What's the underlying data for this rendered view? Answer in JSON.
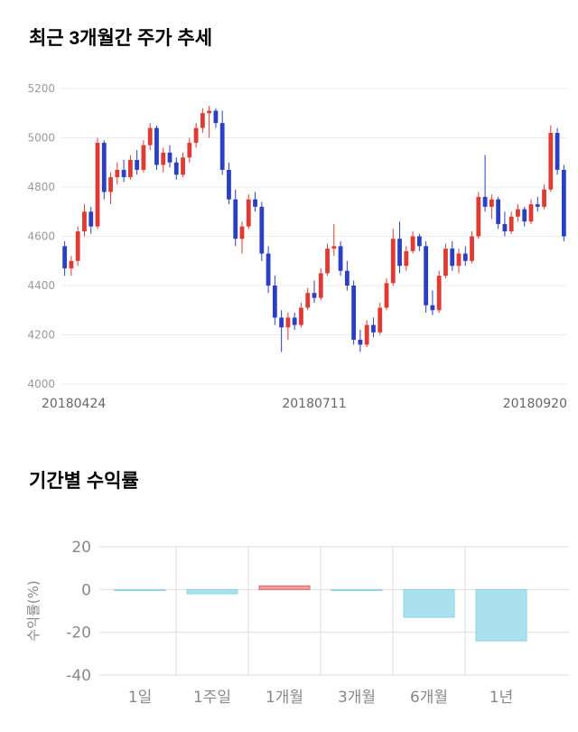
{
  "page": {
    "title_price": "최근 3개월간 주가 추세",
    "title_returns": "기간별 수익률"
  },
  "chart_data": [
    {
      "type": "candlestick",
      "title": "최근 3개월간 주가 추세",
      "ylim": [
        4000,
        5200
      ],
      "yticks": [
        5200,
        5000,
        4800,
        4600,
        4400,
        4200,
        4000
      ],
      "xticks": [
        "20180424",
        "20180711",
        "20180920"
      ],
      "grid": "on",
      "colors": {
        "up": "#e03a34",
        "down": "#2b3fc4",
        "grid": "#ececec",
        "tick_text": "#999999"
      },
      "candles": [
        [
          4560,
          4580,
          4440,
          4470
        ],
        [
          4470,
          4520,
          4440,
          4500
        ],
        [
          4500,
          4640,
          4480,
          4620
        ],
        [
          4620,
          4730,
          4600,
          4700
        ],
        [
          4700,
          4720,
          4610,
          4640
        ],
        [
          4640,
          5000,
          4630,
          4980
        ],
        [
          4980,
          4990,
          4750,
          4780
        ],
        [
          4780,
          4860,
          4730,
          4840
        ],
        [
          4840,
          4900,
          4810,
          4870
        ],
        [
          4870,
          4910,
          4820,
          4840
        ],
        [
          4840,
          4930,
          4830,
          4910
        ],
        [
          4910,
          4950,
          4850,
          4870
        ],
        [
          4870,
          4990,
          4860,
          4970
        ],
        [
          4970,
          5060,
          4950,
          5040
        ],
        [
          5040,
          5050,
          4870,
          4890
        ],
        [
          4890,
          4960,
          4860,
          4940
        ],
        [
          4940,
          4970,
          4880,
          4900
        ],
        [
          4900,
          4920,
          4830,
          4850
        ],
        [
          4850,
          4940,
          4840,
          4920
        ],
        [
          4920,
          5000,
          4900,
          4980
        ],
        [
          4980,
          5060,
          4960,
          5040
        ],
        [
          5040,
          5120,
          5020,
          5100
        ],
        [
          5100,
          5130,
          5000,
          5110
        ],
        [
          5110,
          5120,
          5040,
          5060
        ],
        [
          5060,
          5110,
          4850,
          4870
        ],
        [
          4870,
          4900,
          4730,
          4750
        ],
        [
          4750,
          4790,
          4560,
          4590
        ],
        [
          4590,
          4660,
          4530,
          4640
        ],
        [
          4640,
          4770,
          4630,
          4750
        ],
        [
          4750,
          4780,
          4700,
          4720
        ],
        [
          4720,
          4740,
          4500,
          4530
        ],
        [
          4530,
          4560,
          4370,
          4400
        ],
        [
          4400,
          4440,
          4240,
          4270
        ],
        [
          4270,
          4300,
          4130,
          4230
        ],
        [
          4230,
          4290,
          4180,
          4270
        ],
        [
          4270,
          4290,
          4220,
          4240
        ],
        [
          4240,
          4330,
          4230,
          4310
        ],
        [
          4310,
          4390,
          4300,
          4370
        ],
        [
          4370,
          4420,
          4330,
          4350
        ],
        [
          4350,
          4470,
          4340,
          4450
        ],
        [
          4450,
          4570,
          4440,
          4550
        ],
        [
          4550,
          4650,
          4520,
          4560
        ],
        [
          4560,
          4580,
          4440,
          4460
        ],
        [
          4460,
          4500,
          4380,
          4400
        ],
        [
          4400,
          4420,
          4160,
          4180
        ],
        [
          4180,
          4220,
          4130,
          4160
        ],
        [
          4160,
          4260,
          4150,
          4240
        ],
        [
          4240,
          4270,
          4190,
          4210
        ],
        [
          4210,
          4330,
          4200,
          4310
        ],
        [
          4310,
          4430,
          4300,
          4410
        ],
        [
          4410,
          4630,
          4400,
          4590
        ],
        [
          4590,
          4660,
          4450,
          4480
        ],
        [
          4480,
          4560,
          4460,
          4540
        ],
        [
          4540,
          4620,
          4530,
          4600
        ],
        [
          4600,
          4610,
          4540,
          4560
        ],
        [
          4560,
          4580,
          4290,
          4320
        ],
        [
          4320,
          4380,
          4280,
          4300
        ],
        [
          4300,
          4460,
          4290,
          4440
        ],
        [
          4440,
          4570,
          4430,
          4550
        ],
        [
          4550,
          4580,
          4460,
          4480
        ],
        [
          4480,
          4550,
          4450,
          4530
        ],
        [
          4530,
          4560,
          4480,
          4500
        ],
        [
          4500,
          4620,
          4490,
          4600
        ],
        [
          4600,
          4780,
          4590,
          4760
        ],
        [
          4760,
          4930,
          4700,
          4720
        ],
        [
          4720,
          4770,
          4670,
          4750
        ],
        [
          4750,
          4760,
          4630,
          4650
        ],
        [
          4650,
          4700,
          4600,
          4620
        ],
        [
          4620,
          4700,
          4610,
          4680
        ],
        [
          4680,
          4730,
          4660,
          4710
        ],
        [
          4710,
          4720,
          4640,
          4660
        ],
        [
          4660,
          4750,
          4650,
          4730
        ],
        [
          4730,
          4760,
          4700,
          4720
        ],
        [
          4720,
          4810,
          4710,
          4790
        ],
        [
          4790,
          5050,
          4780,
          5020
        ],
        [
          5020,
          5040,
          4850,
          4870
        ],
        [
          4870,
          4890,
          4580,
          4600
        ]
      ]
    },
    {
      "type": "bar",
      "title": "기간별 수익률",
      "ylabel": "수익률(%)",
      "categories": [
        "1일",
        "1주일",
        "1개월",
        "3개월",
        "6개월",
        "1년"
      ],
      "values": [
        -0.5,
        -2,
        1.7,
        -0.5,
        -13,
        -24
      ],
      "ylim": [
        -40,
        20
      ],
      "yticks": [
        20,
        0,
        -20,
        -40
      ],
      "grid": "on",
      "legend": "none",
      "colors": {
        "negative_fill": "#abe1ef",
        "negative_stroke": "#8ed3e6",
        "positive_fill": "#f4a0a0",
        "positive_stroke": "#e06060",
        "grid": "#dddddd",
        "tick_text": "#888888"
      }
    }
  ]
}
